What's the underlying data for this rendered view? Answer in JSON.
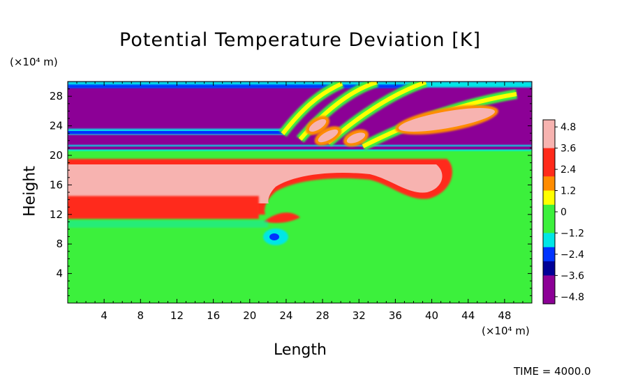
{
  "chart_data": {
    "type": "heatmap",
    "title": "Potential Temperature Deviation [K]",
    "xlabel": "Length",
    "ylabel": "Height",
    "x_unit": "(×10⁴ m)",
    "y_unit": "(×10⁴ m)",
    "xlim": [
      0,
      51
    ],
    "ylim": [
      0,
      30
    ],
    "x_ticks": [
      4,
      8,
      12,
      16,
      20,
      24,
      28,
      32,
      36,
      40,
      44,
      48
    ],
    "y_ticks": [
      4,
      8,
      12,
      16,
      20,
      24,
      28
    ],
    "colorbar": {
      "range": [
        -5.2,
        5.2
      ],
      "ticks": [
        "4.8",
        "3.6",
        "2.4",
        "1.2",
        "0",
        "−1.2",
        "−2.4",
        "−3.6",
        "−4.8"
      ]
    },
    "annotation": "TIME = 4000.0",
    "colors": {
      "pos_max": "#f7b3b0",
      "red": "#ff2a1a",
      "orange": "#ff8c00",
      "yellow": "#ffff00",
      "green": "#3cf03c",
      "cyan": "#00e6e6",
      "blue": "#0033ff",
      "navy": "#000096",
      "neg_max": "#8c0096"
    }
  }
}
